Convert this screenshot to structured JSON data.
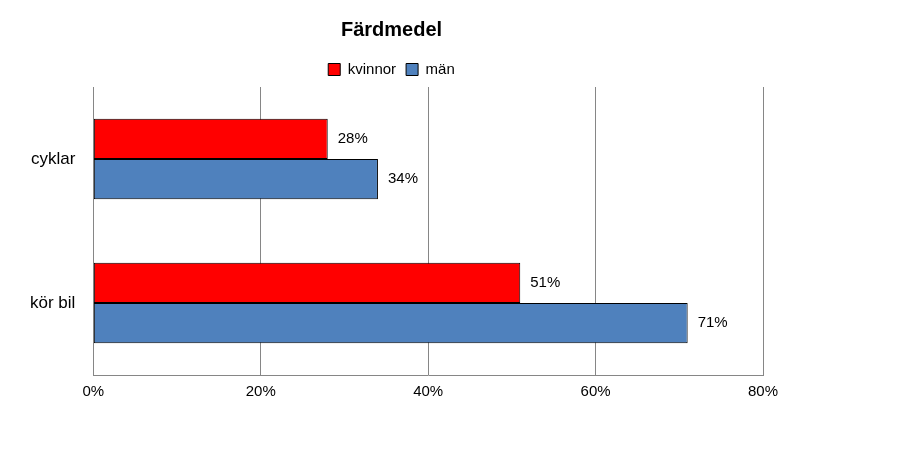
{
  "chart_data": {
    "type": "bar",
    "title": "Färdmedel",
    "orientation": "horizontal",
    "categories": [
      "cyklar",
      "kör bil"
    ],
    "series": [
      {
        "name": "kvinnor",
        "color": "#ff0000",
        "values": [
          28,
          51
        ],
        "value_labels": [
          "28%",
          "51%"
        ]
      },
      {
        "name": "män",
        "color": "#4f81bd",
        "values": [
          34,
          71
        ],
        "value_labels": [
          "34%",
          "71%"
        ]
      }
    ],
    "xlim": [
      0,
      80
    ],
    "xticks": [
      {
        "value": 0,
        "label": "0%"
      },
      {
        "value": 20,
        "label": "20%"
      },
      {
        "value": 40,
        "label": "40%"
      },
      {
        "value": 60,
        "label": "60%"
      },
      {
        "value": 80,
        "label": "80%"
      }
    ],
    "grid": true,
    "legend": "top",
    "data_labels": true
  }
}
